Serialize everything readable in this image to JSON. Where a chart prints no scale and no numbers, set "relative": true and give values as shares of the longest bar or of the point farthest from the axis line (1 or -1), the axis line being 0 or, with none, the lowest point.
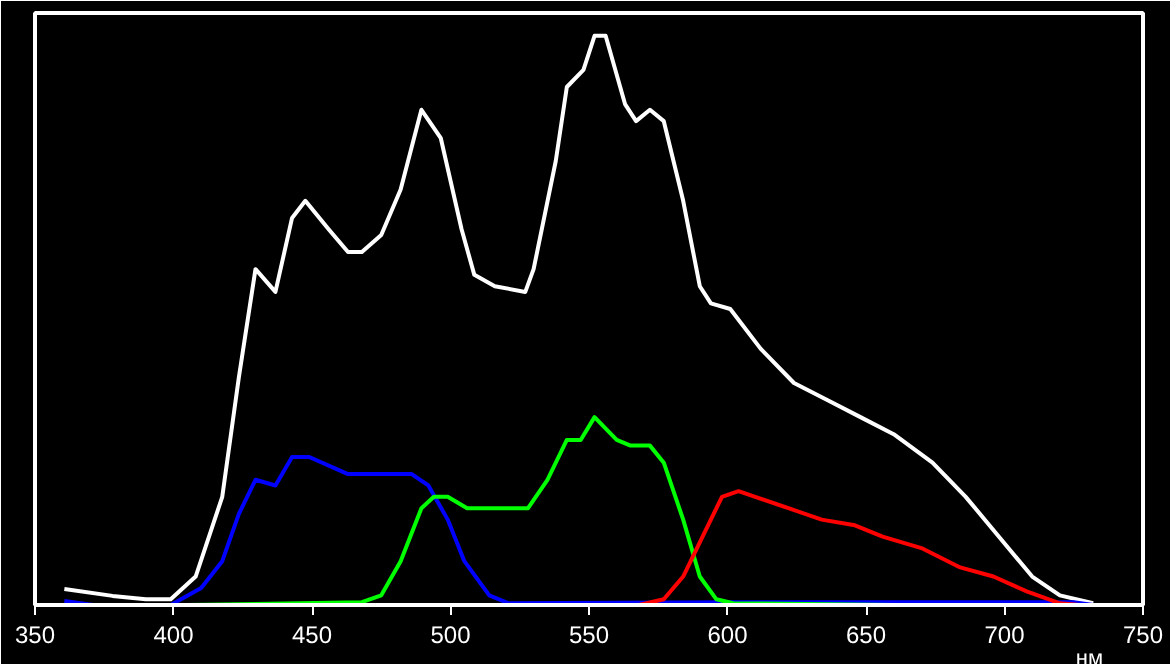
{
  "chart_data": {
    "type": "line",
    "relative": true,
    "xlabel": "нм",
    "xlim": [
      350,
      750
    ],
    "xticks": [
      350,
      400,
      450,
      500,
      550,
      600,
      650,
      700,
      750
    ],
    "tick_labels": "x",
    "grid": false,
    "marker": "none",
    "line_style": "solid",
    "series": [
      {
        "color": "#ffffff",
        "x": [
          360.6,
          378,
          390,
          399,
          408,
          417.6,
          423.6,
          429.6,
          436.8,
          442.8,
          447.6,
          456,
          463,
          468,
          475,
          482,
          489.5,
          496.5,
          504,
          508.6,
          516,
          527,
          530,
          538,
          542,
          548,
          552,
          556,
          563,
          567,
          572,
          577,
          584,
          590,
          594,
          601,
          612,
          624,
          636,
          648,
          660,
          674,
          686,
          698,
          710,
          720,
          732
        ],
        "values": [
          0.028,
          0.016,
          0.01,
          0.01,
          0.05,
          0.19,
          0.4,
          0.59,
          0.55,
          0.68,
          0.71,
          0.66,
          0.62,
          0.62,
          0.65,
          0.73,
          0.87,
          0.82,
          0.66,
          0.58,
          0.56,
          0.55,
          0.59,
          0.78,
          0.91,
          0.94,
          1.0,
          1.0,
          0.88,
          0.85,
          0.87,
          0.85,
          0.71,
          0.56,
          0.53,
          0.52,
          0.45,
          0.39,
          0.36,
          0.33,
          0.3,
          0.25,
          0.19,
          0.12,
          0.05,
          0.017,
          0.003
        ]
      },
      {
        "color": "#0000ff",
        "x": [
          360.6,
          371,
          399,
          410,
          417.6,
          423.6,
          429.6,
          436.8,
          442.8,
          449,
          463,
          478,
          486,
          492,
          499,
          505,
          514,
          521,
          600,
          725,
          732
        ],
        "values": [
          0.007,
          0.0,
          0.0,
          0.03,
          0.077,
          0.16,
          0.22,
          0.21,
          0.26,
          0.26,
          0.23,
          0.23,
          0.23,
          0.21,
          0.15,
          0.077,
          0.017,
          0.003,
          0.005,
          0.005,
          0.0
        ]
      },
      {
        "color": "#00ff00",
        "x": [
          405,
          468,
          475,
          482,
          489.5,
          494,
          499,
          506,
          518,
          528,
          535,
          542,
          547,
          552,
          560,
          565,
          572,
          577,
          584,
          590,
          596,
          602,
          660
        ],
        "values": [
          0.0,
          0.005,
          0.017,
          0.077,
          0.17,
          0.19,
          0.19,
          0.17,
          0.17,
          0.17,
          0.22,
          0.29,
          0.29,
          0.33,
          0.29,
          0.28,
          0.28,
          0.25,
          0.15,
          0.05,
          0.01,
          0.003,
          0.0
        ]
      },
      {
        "color": "#ff0000",
        "x": [
          470,
          568,
          577,
          584,
          591,
          598,
          604,
          610,
          622,
          634,
          646,
          656,
          670,
          684,
          696,
          708,
          720,
          727
        ],
        "values": [
          0.0,
          0.0,
          0.01,
          0.05,
          0.12,
          0.19,
          0.2,
          0.19,
          0.17,
          0.15,
          0.14,
          0.12,
          0.1,
          0.066,
          0.05,
          0.024,
          0.003,
          0.0
        ]
      }
    ]
  }
}
